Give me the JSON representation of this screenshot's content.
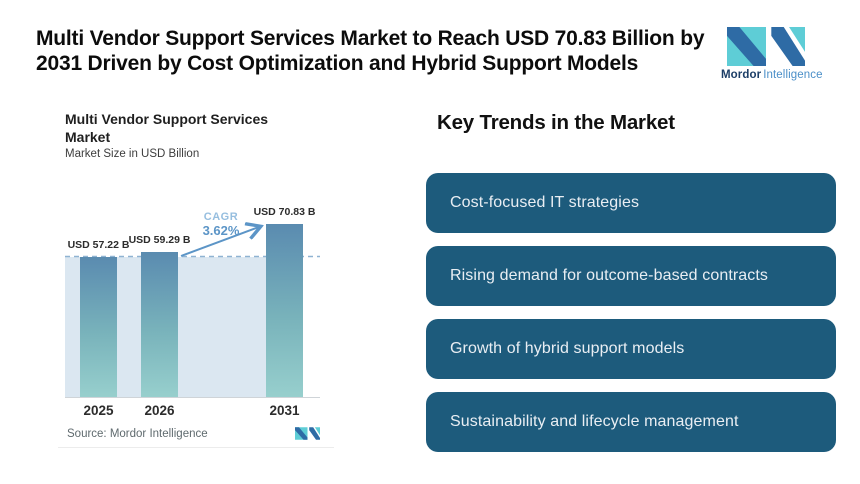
{
  "header": {
    "title": "Multi Vendor Support Services Market to Reach USD 70.83 Billion by 2031 Driven by Cost Optimization and Hybrid Support Models",
    "logo": {
      "name": "Mordor Intelligence",
      "bold_part": "Mordor",
      "light_part": "Intelligence"
    }
  },
  "chart": {
    "title_line1": "Multi Vendor Support Services",
    "title_line2": "Market",
    "subtitle": "Market Size in USD Billion",
    "source": "Source: Mordor Intelligence"
  },
  "chart_data": {
    "type": "bar",
    "title": "Multi Vendor Support Services Market",
    "subtitle": "Market Size in USD Billion",
    "unit": "USD Billion",
    "categories": [
      "2025",
      "2026",
      "2031"
    ],
    "values": [
      57.22,
      59.29,
      70.83
    ],
    "bar_labels": [
      "USD 57.22 B",
      "USD 59.29 B",
      "USD 70.83 B"
    ],
    "cagr_label": "CAGR",
    "cagr_value": "3.62%",
    "baseline_value": 0,
    "reference_line_value": 57.22,
    "legend": "none",
    "grid": "off",
    "colors": {
      "bar_top": "#5a8bb0",
      "bar_bottom": "#97cfcd",
      "plot_fill": "#dbe7f1",
      "dashed_line": "#8fb3d2",
      "accent_blue": "#5c95c7"
    }
  },
  "trends": {
    "heading": "Key Trends in the Market",
    "pill_color": "#1d5b7c",
    "items": [
      {
        "label": "Cost-focused IT strategies"
      },
      {
        "label": "Rising demand for outcome-based contracts"
      },
      {
        "label": "Growth of hybrid support models"
      },
      {
        "label": "Sustainability and lifecycle management"
      }
    ]
  }
}
